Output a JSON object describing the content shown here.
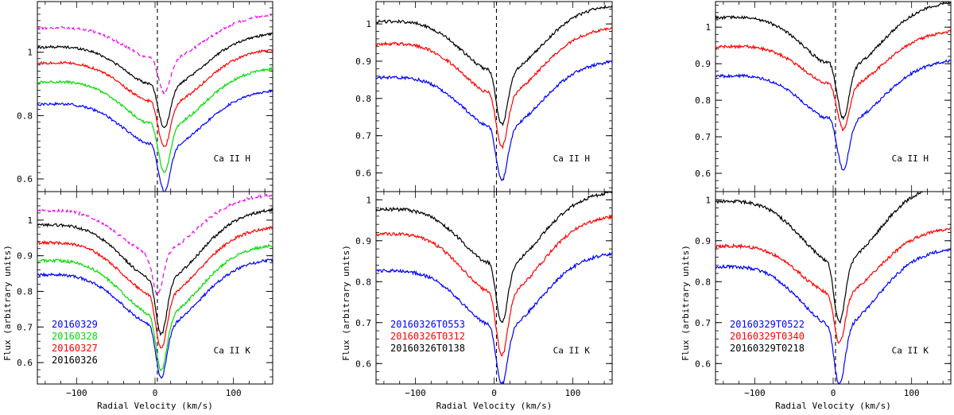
{
  "chart_data": [
    {
      "type": "line",
      "x_range": [
        -150,
        150
      ],
      "xlabel": "Radial Velocity  (km/s)",
      "ylabel": "Flux  (arbitrary  units)",
      "dashed_line_x": 3,
      "x_ticks": [
        -100,
        0,
        100
      ],
      "legend": [
        {
          "label": "20160329",
          "color": "#0000ff"
        },
        {
          "label": "20160328",
          "color": "#00dd00"
        },
        {
          "label": "20160327",
          "color": "#ff0000"
        },
        {
          "label": "20160326",
          "color": "#000000"
        }
      ],
      "subplots": [
        {
          "line": "Ca  II  H",
          "ylim": [
            0.56,
            1.16
          ],
          "y_ticks": [
            0.6,
            0.8,
            1.0
          ],
          "y_tick_labels": [
            "0.6",
            "0.8",
            "1"
          ],
          "series": [
            {
              "name": "magenta",
              "color": "#ee00ee",
              "dashed": true,
              "cont": 1.1,
              "depth": 0.23,
              "x_min": 12
            },
            {
              "name": "20160326",
              "color": "#000000",
              "dashed": false,
              "cont": 1.04,
              "depth": 0.28,
              "x_min": 12
            },
            {
              "name": "20160327",
              "color": "#ff0000",
              "dashed": false,
              "cont": 0.99,
              "depth": 0.29,
              "x_min": 12
            },
            {
              "name": "20160328",
              "color": "#00dd00",
              "dashed": false,
              "cont": 0.93,
              "depth": 0.31,
              "x_min": 12
            },
            {
              "name": "20160329",
              "color": "#0000ff",
              "dashed": false,
              "cont": 0.86,
              "depth": 0.3,
              "x_min": 12
            }
          ]
        },
        {
          "line": "Ca  II  K",
          "ylim": [
            0.54,
            1.08
          ],
          "y_ticks": [
            0.6,
            0.7,
            0.8,
            0.9,
            1.0
          ],
          "y_tick_labels": [
            "0.6",
            "0.7",
            "0.8",
            "0.9",
            "1"
          ],
          "series": [
            {
              "name": "magenta",
              "color": "#ee00ee",
              "dashed": true,
              "cont": 1.05,
              "depth": 0.26,
              "x_min": 3
            },
            {
              "name": "20160326",
              "color": "#000000",
              "dashed": false,
              "cont": 1.01,
              "depth": 0.33,
              "x_min": 8
            },
            {
              "name": "20160327",
              "color": "#ff0000",
              "dashed": false,
              "cont": 0.96,
              "depth": 0.32,
              "x_min": 8
            },
            {
              "name": "20160328",
              "color": "#00dd00",
              "dashed": false,
              "cont": 0.91,
              "depth": 0.33,
              "x_min": 8
            },
            {
              "name": "20160329",
              "color": "#0000ff",
              "dashed": false,
              "cont": 0.87,
              "depth": 0.31,
              "x_min": 8
            }
          ]
        }
      ]
    },
    {
      "type": "line",
      "x_range": [
        -150,
        150
      ],
      "xlabel": "Radial Velocity  (km/s)",
      "ylabel": "Flux  (arbitrary  units)",
      "dashed_line_x": 3,
      "x_ticks": [
        -100,
        0,
        100
      ],
      "legend": [
        {
          "label": "20160326T0553",
          "color": "#0000ff"
        },
        {
          "label": "20160326T0312",
          "color": "#ff0000"
        },
        {
          "label": "20160326T0138",
          "color": "#000000"
        }
      ],
      "subplots": [
        {
          "line": "Ca  II  H",
          "ylim": [
            0.55,
            1.06
          ],
          "y_ticks": [
            0.6,
            0.7,
            0.8,
            0.9,
            1.0
          ],
          "y_tick_labels": [
            "0.6",
            "0.7",
            "0.8",
            "0.9",
            "1"
          ],
          "series": [
            {
              "name": "20160326T0138",
              "color": "#000000",
              "dashed": false,
              "cont": 1.03,
              "depth": 0.3,
              "x_min": 10
            },
            {
              "name": "20160326T0312",
              "color": "#ff0000",
              "dashed": false,
              "cont": 0.97,
              "depth": 0.3,
              "x_min": 10
            },
            {
              "name": "20160326T0553",
              "color": "#0000ff",
              "dashed": false,
              "cont": 0.88,
              "depth": 0.3,
              "x_min": 10
            }
          ]
        },
        {
          "line": "Ca  II  K",
          "ylim": [
            0.55,
            1.02
          ],
          "y_ticks": [
            0.6,
            0.7,
            0.8,
            0.9,
            1.0
          ],
          "y_tick_labels": [
            "0.6",
            "0.7",
            "0.8",
            "0.9",
            "1"
          ],
          "series": [
            {
              "name": "20160326T0138",
              "color": "#000000",
              "dashed": false,
              "cont": 1.0,
              "depth": 0.3,
              "x_min": 10
            },
            {
              "name": "20160326T0312",
              "color": "#ff0000",
              "dashed": false,
              "cont": 0.94,
              "depth": 0.32,
              "x_min": 10
            },
            {
              "name": "20160326T0553",
              "color": "#0000ff",
              "dashed": false,
              "cont": 0.85,
              "depth": 0.3,
              "x_min": 10
            }
          ]
        }
      ]
    },
    {
      "type": "line",
      "x_range": [
        -150,
        150
      ],
      "xlabel": "Radial Velocity  (km/s)",
      "ylabel": "Flux  (arbitrary  units)",
      "dashed_line_x": 3,
      "x_ticks": [
        -100,
        0,
        100
      ],
      "legend": [
        {
          "label": "20160329T0522",
          "color": "#0000ff"
        },
        {
          "label": "20160329T0340",
          "color": "#ff0000"
        },
        {
          "label": "20160329T0218",
          "color": "#000000"
        }
      ],
      "subplots": [
        {
          "line": "Ca  II  H",
          "ylim": [
            0.55,
            1.07
          ],
          "y_ticks": [
            0.6,
            0.7,
            0.8,
            0.9,
            1.0
          ],
          "y_tick_labels": [
            "0.6",
            "0.7",
            "0.8",
            "0.9",
            "1"
          ],
          "series": [
            {
              "name": "20160329T0218",
              "color": "#000000",
              "dashed": false,
              "cont": 1.05,
              "depth": 0.3,
              "x_min": 13
            },
            {
              "name": "20160329T0340",
              "color": "#ff0000",
              "dashed": false,
              "cont": 0.97,
              "depth": 0.25,
              "x_min": 13
            },
            {
              "name": "20160329T0522",
              "color": "#0000ff",
              "dashed": false,
              "cont": 0.89,
              "depth": 0.28,
              "x_min": 13
            }
          ]
        },
        {
          "line": "Ca  II  K",
          "ylim": [
            0.55,
            1.02
          ],
          "y_ticks": [
            0.6,
            0.7,
            0.8,
            0.9,
            1.0
          ],
          "y_tick_labels": [
            "0.6",
            "0.7",
            "0.8",
            "0.9",
            "1"
          ],
          "series": [
            {
              "name": "20160329T0218",
              "color": "#000000",
              "dashed": false,
              "cont": 1.02,
              "depth": 0.32,
              "x_min": 8
            },
            {
              "name": "20160329T0340",
              "color": "#ff0000",
              "dashed": false,
              "cont": 0.91,
              "depth": 0.26,
              "x_min": 8
            },
            {
              "name": "20160329T0522",
              "color": "#0000ff",
              "dashed": false,
              "cont": 0.86,
              "depth": 0.31,
              "x_min": 8
            }
          ]
        }
      ]
    }
  ]
}
